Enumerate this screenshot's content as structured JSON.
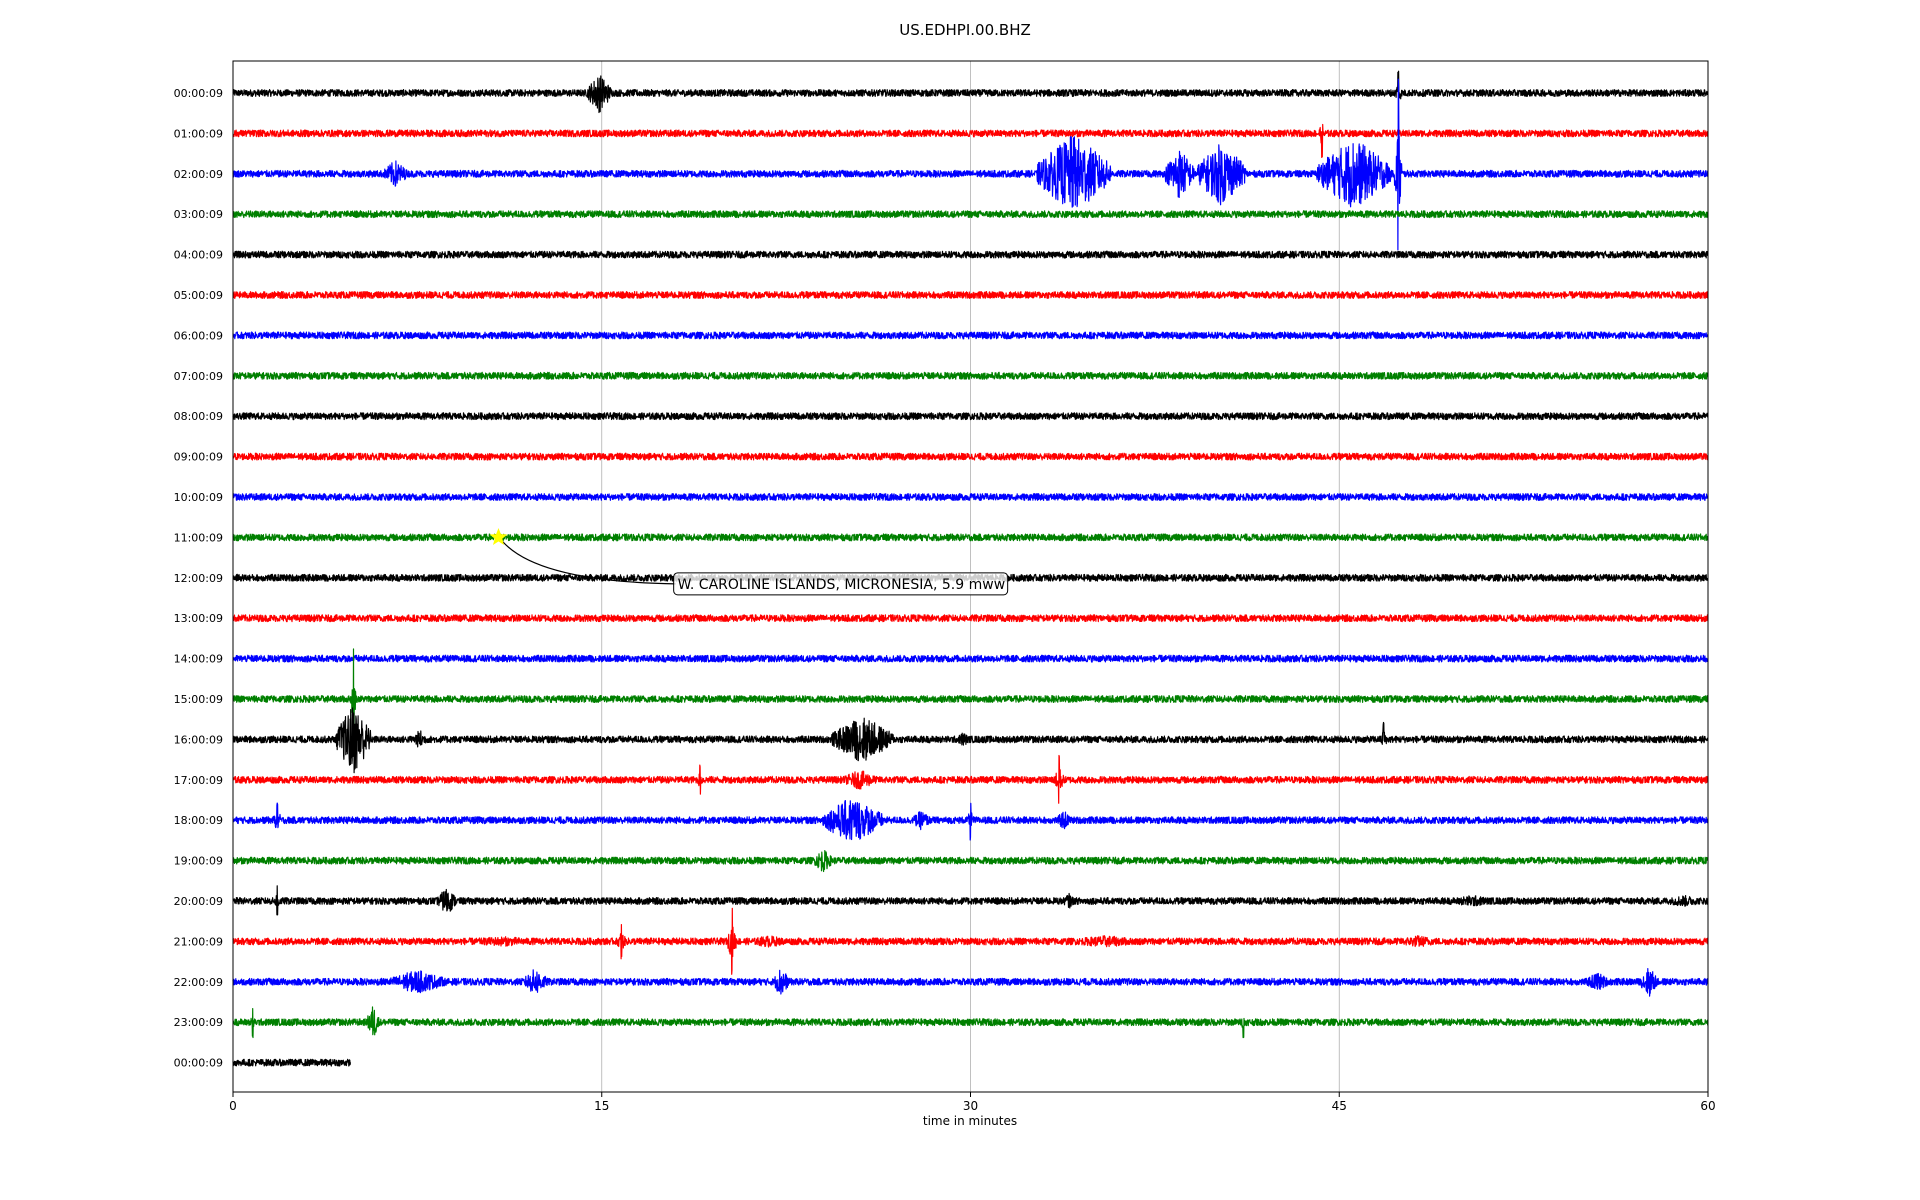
{
  "chart_data": {
    "type": "line",
    "title": "US.EDHPI.00.BHZ",
    "xlabel": "time in minutes",
    "xlim": [
      0,
      60
    ],
    "xticks": [
      0,
      15,
      30,
      45,
      60
    ],
    "grid": "vertical",
    "colors": [
      "#000000",
      "#ff0000",
      "#0000ff",
      "#008000"
    ],
    "rows": [
      {
        "label": "00:00:09",
        "end_minute": 60,
        "events": [
          {
            "t": 14.9,
            "amp": 1.0,
            "dur": 1.0
          },
          {
            "t": 47.4,
            "amp": 0.6,
            "dur": 0.3
          }
        ]
      },
      {
        "label": "01:00:09",
        "end_minute": 60,
        "events": [
          {
            "t": 44.3,
            "amp": 0.6,
            "dur": 0.3
          }
        ]
      },
      {
        "label": "02:00:09",
        "end_minute": 60,
        "events": [
          {
            "t": 6.6,
            "amp": 0.7,
            "dur": 1.0
          },
          {
            "t": 34.2,
            "amp": 2.0,
            "dur": 3.0
          },
          {
            "t": 38.5,
            "amp": 1.3,
            "dur": 1.2
          },
          {
            "t": 40.2,
            "amp": 1.6,
            "dur": 2.0
          },
          {
            "t": 45.6,
            "amp": 1.8,
            "dur": 3.0
          },
          {
            "t": 47.4,
            "amp": 2.6,
            "dur": 0.3
          }
        ]
      },
      {
        "label": "03:00:09",
        "end_minute": 60,
        "events": []
      },
      {
        "label": "04:00:09",
        "end_minute": 60,
        "events": []
      },
      {
        "label": "05:00:09",
        "end_minute": 60,
        "events": []
      },
      {
        "label": "06:00:09",
        "end_minute": 60,
        "events": []
      },
      {
        "label": "07:00:09",
        "end_minute": 60,
        "events": []
      },
      {
        "label": "08:00:09",
        "end_minute": 60,
        "events": []
      },
      {
        "label": "09:00:09",
        "end_minute": 60,
        "events": []
      },
      {
        "label": "10:00:09",
        "end_minute": 60,
        "events": []
      },
      {
        "label": "11:00:09",
        "end_minute": 60,
        "events": []
      },
      {
        "label": "12:00:09",
        "end_minute": 60,
        "events": []
      },
      {
        "label": "13:00:09",
        "end_minute": 60,
        "events": []
      },
      {
        "label": "14:00:09",
        "end_minute": 60,
        "events": []
      },
      {
        "label": "15:00:09",
        "end_minute": 60,
        "events": [
          {
            "t": 4.9,
            "amp": 1.5,
            "dur": 0.2
          }
        ]
      },
      {
        "label": "16:00:09",
        "end_minute": 60,
        "events": [
          {
            "t": 4.9,
            "amp": 1.8,
            "dur": 1.4
          },
          {
            "t": 7.6,
            "amp": 0.5,
            "dur": 0.6
          },
          {
            "t": 25.6,
            "amp": 1.2,
            "dur": 2.5
          },
          {
            "t": 29.7,
            "amp": 0.4,
            "dur": 0.5
          },
          {
            "t": 46.8,
            "amp": 0.5,
            "dur": 0.3
          }
        ]
      },
      {
        "label": "17:00:09",
        "end_minute": 60,
        "events": [
          {
            "t": 19.0,
            "amp": 0.4,
            "dur": 0.3
          },
          {
            "t": 25.5,
            "amp": 0.5,
            "dur": 1.5
          },
          {
            "t": 33.6,
            "amp": 0.7,
            "dur": 0.4
          }
        ]
      },
      {
        "label": "18:00:09",
        "end_minute": 60,
        "events": [
          {
            "t": 1.8,
            "amp": 0.5,
            "dur": 0.4
          },
          {
            "t": 25.2,
            "amp": 1.2,
            "dur": 2.5
          },
          {
            "t": 28.0,
            "amp": 0.5,
            "dur": 0.8
          },
          {
            "t": 30.0,
            "amp": 0.5,
            "dur": 0.3
          },
          {
            "t": 33.8,
            "amp": 0.5,
            "dur": 0.6
          }
        ]
      },
      {
        "label": "19:00:09",
        "end_minute": 60,
        "events": [
          {
            "t": 24.0,
            "amp": 0.6,
            "dur": 0.8
          }
        ]
      },
      {
        "label": "20:00:09",
        "end_minute": 60,
        "events": [
          {
            "t": 1.8,
            "amp": 0.4,
            "dur": 0.4
          },
          {
            "t": 8.7,
            "amp": 0.7,
            "dur": 0.8
          },
          {
            "t": 34.0,
            "amp": 0.4,
            "dur": 0.5
          },
          {
            "t": 50.4,
            "amp": 0.3,
            "dur": 2.2
          },
          {
            "t": 59.0,
            "amp": 0.3,
            "dur": 1.8
          }
        ]
      },
      {
        "label": "21:00:09",
        "end_minute": 60,
        "events": [
          {
            "t": 11.0,
            "amp": 0.25,
            "dur": 4.0
          },
          {
            "t": 15.8,
            "amp": 0.5,
            "dur": 0.4
          },
          {
            "t": 20.3,
            "amp": 0.9,
            "dur": 0.4
          },
          {
            "t": 21.8,
            "amp": 0.3,
            "dur": 2.0
          },
          {
            "t": 35.5,
            "amp": 0.3,
            "dur": 3.5
          },
          {
            "t": 48.2,
            "amp": 0.3,
            "dur": 2.2
          }
        ]
      },
      {
        "label": "22:00:09",
        "end_minute": 60,
        "events": [
          {
            "t": 7.5,
            "amp": 0.6,
            "dur": 2.5
          },
          {
            "t": 12.3,
            "amp": 0.7,
            "dur": 1.0
          },
          {
            "t": 22.3,
            "amp": 0.8,
            "dur": 0.6
          },
          {
            "t": 55.5,
            "amp": 0.5,
            "dur": 1.0
          },
          {
            "t": 57.6,
            "amp": 0.8,
            "dur": 0.7
          }
        ]
      },
      {
        "label": "23:00:09",
        "end_minute": 60,
        "events": [
          {
            "t": 0.8,
            "amp": 0.4,
            "dur": 0.2
          },
          {
            "t": 5.7,
            "amp": 0.9,
            "dur": 0.5
          },
          {
            "t": 41.1,
            "amp": 0.4,
            "dur": 0.2
          }
        ]
      },
      {
        "label": "00:00:09",
        "end_minute": 4.8,
        "events": []
      }
    ],
    "marker": {
      "row_index": 11,
      "minute": 10.8,
      "color": "#ffff00"
    },
    "annotation": {
      "text": "W. CAROLINE ISLANDS, MICRONESIA, 5.9 mww",
      "minute": 17.6,
      "row_position": 12.1
    }
  }
}
